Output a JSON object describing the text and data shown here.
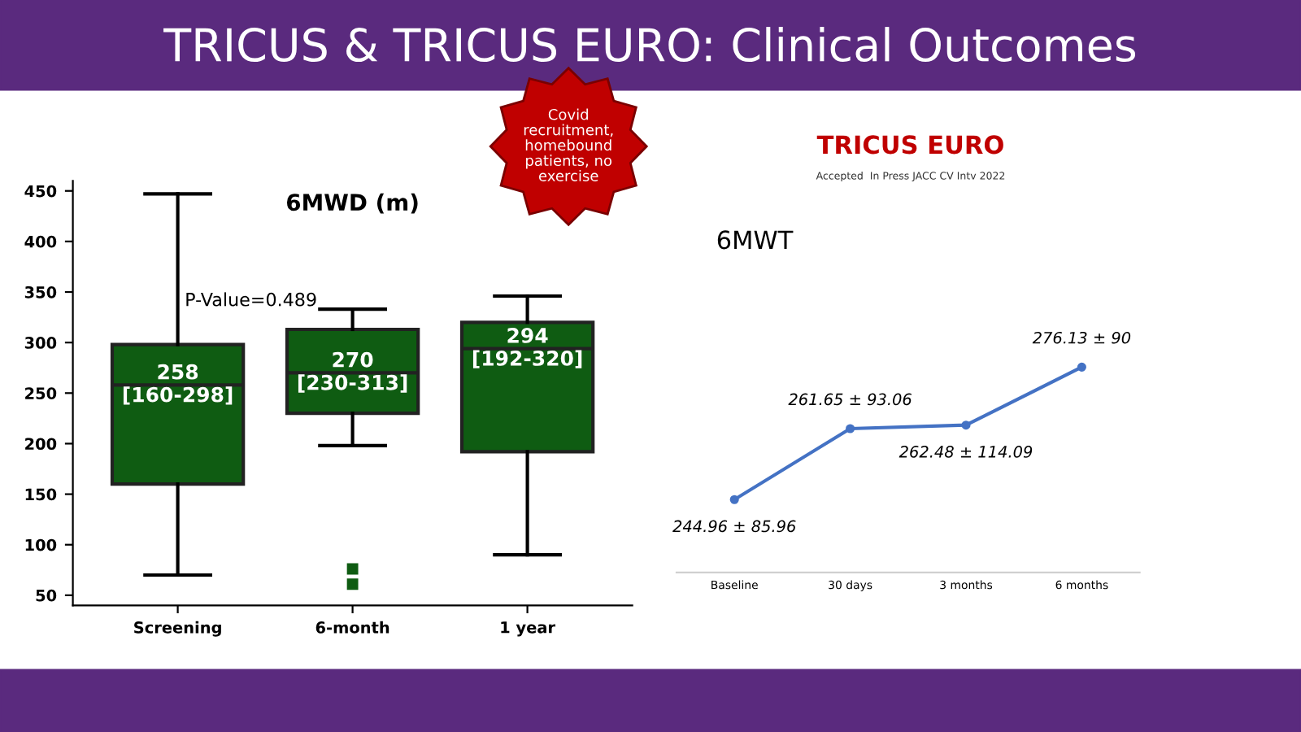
{
  "chart_data": [
    {
      "type": "box",
      "title": "TRICUS & TRICUS EURO: Clinical Outcomes",
      "subtitle": "6MWD (m)",
      "categories": [
        "Screening",
        "6-month",
        "1 year"
      ],
      "boxes": [
        {
          "low": 70,
          "q1": 160,
          "median": 258,
          "q3": 298,
          "high": 447
        },
        {
          "low": 198,
          "q1": 230,
          "median": 270,
          "q3": 313,
          "high": 333,
          "outliers": [
            76,
            61
          ]
        },
        {
          "low": 90,
          "q1": 192,
          "median": 294,
          "q3": 320,
          "high": 346
        }
      ],
      "color": "#0f5c12",
      "ylim": [
        40,
        460
      ],
      "yticks": [
        50,
        100,
        150,
        200,
        250,
        300,
        350,
        400,
        450
      ],
      "grid": false,
      "annotations": [
        {
          "text": "258\n[160-298]",
          "x": "Screening",
          "y": 258
        },
        {
          "text": "270\n[230-313]",
          "x": "6-month",
          "y": 270
        },
        {
          "text": "294\n[192-320]",
          "x": "1 year",
          "y": 294
        },
        "P-Value=0.489",
        "Covid\nrecruitment,\nhomebound\npatients, no\nexercise"
      ]
    },
    {
      "type": "line",
      "title": "TRICUS EURO",
      "subtitle": "Accepted  In Press JACC CV Intv 2022",
      "categories": [
        "Baseline",
        "30 days",
        "3 months",
        "6 months"
      ],
      "series": [
        {
          "color": "#4472c4",
          "values": [
            244.96,
            261.65,
            262.48,
            276.13
          ],
          "value_labels": [
            "244.96 ± 85.96",
            "261.65 ± 93.06",
            "262.48 ± 114.09",
            "276.13 ± 90"
          ]
        }
      ],
      "tick_labels": "x",
      "marker": "circle",
      "grid": false,
      "annotations": [
        "6MWT"
      ]
    }
  ]
}
